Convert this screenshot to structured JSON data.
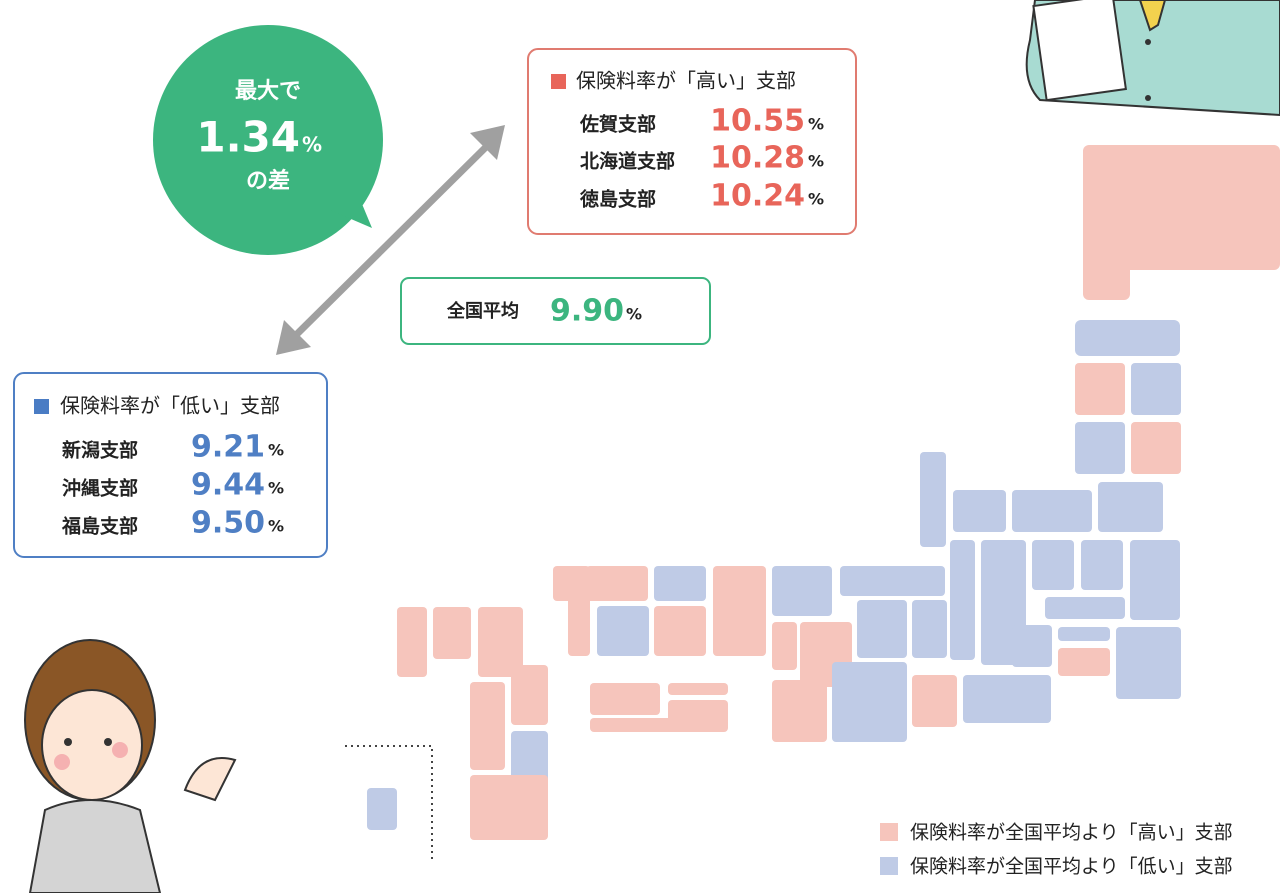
{
  "callout": {
    "line1": "最大で",
    "value": "1.34",
    "unit": "%",
    "line3": "の差"
  },
  "high": {
    "title": "保険料率が「高い」支部",
    "items": [
      {
        "name": "佐賀支部",
        "value": "10.55",
        "unit": "%"
      },
      {
        "name": "北海道支部",
        "value": "10.28",
        "unit": "%"
      },
      {
        "name": "徳島支部",
        "value": "10.24",
        "unit": "%"
      }
    ]
  },
  "average": {
    "label": "全国平均",
    "value": "9.90",
    "unit": "%"
  },
  "low": {
    "title": "保険料率が「低い」支部",
    "items": [
      {
        "name": "新潟支部",
        "value": "9.21",
        "unit": "%"
      },
      {
        "name": "沖縄支部",
        "value": "9.44",
        "unit": "%"
      },
      {
        "name": "福島支部",
        "value": "9.50",
        "unit": "%"
      }
    ]
  },
  "legend": {
    "high": "保険料率が全国平均より「高い」支部",
    "low": "保険料率が全国平均より「低い」支部"
  }
}
